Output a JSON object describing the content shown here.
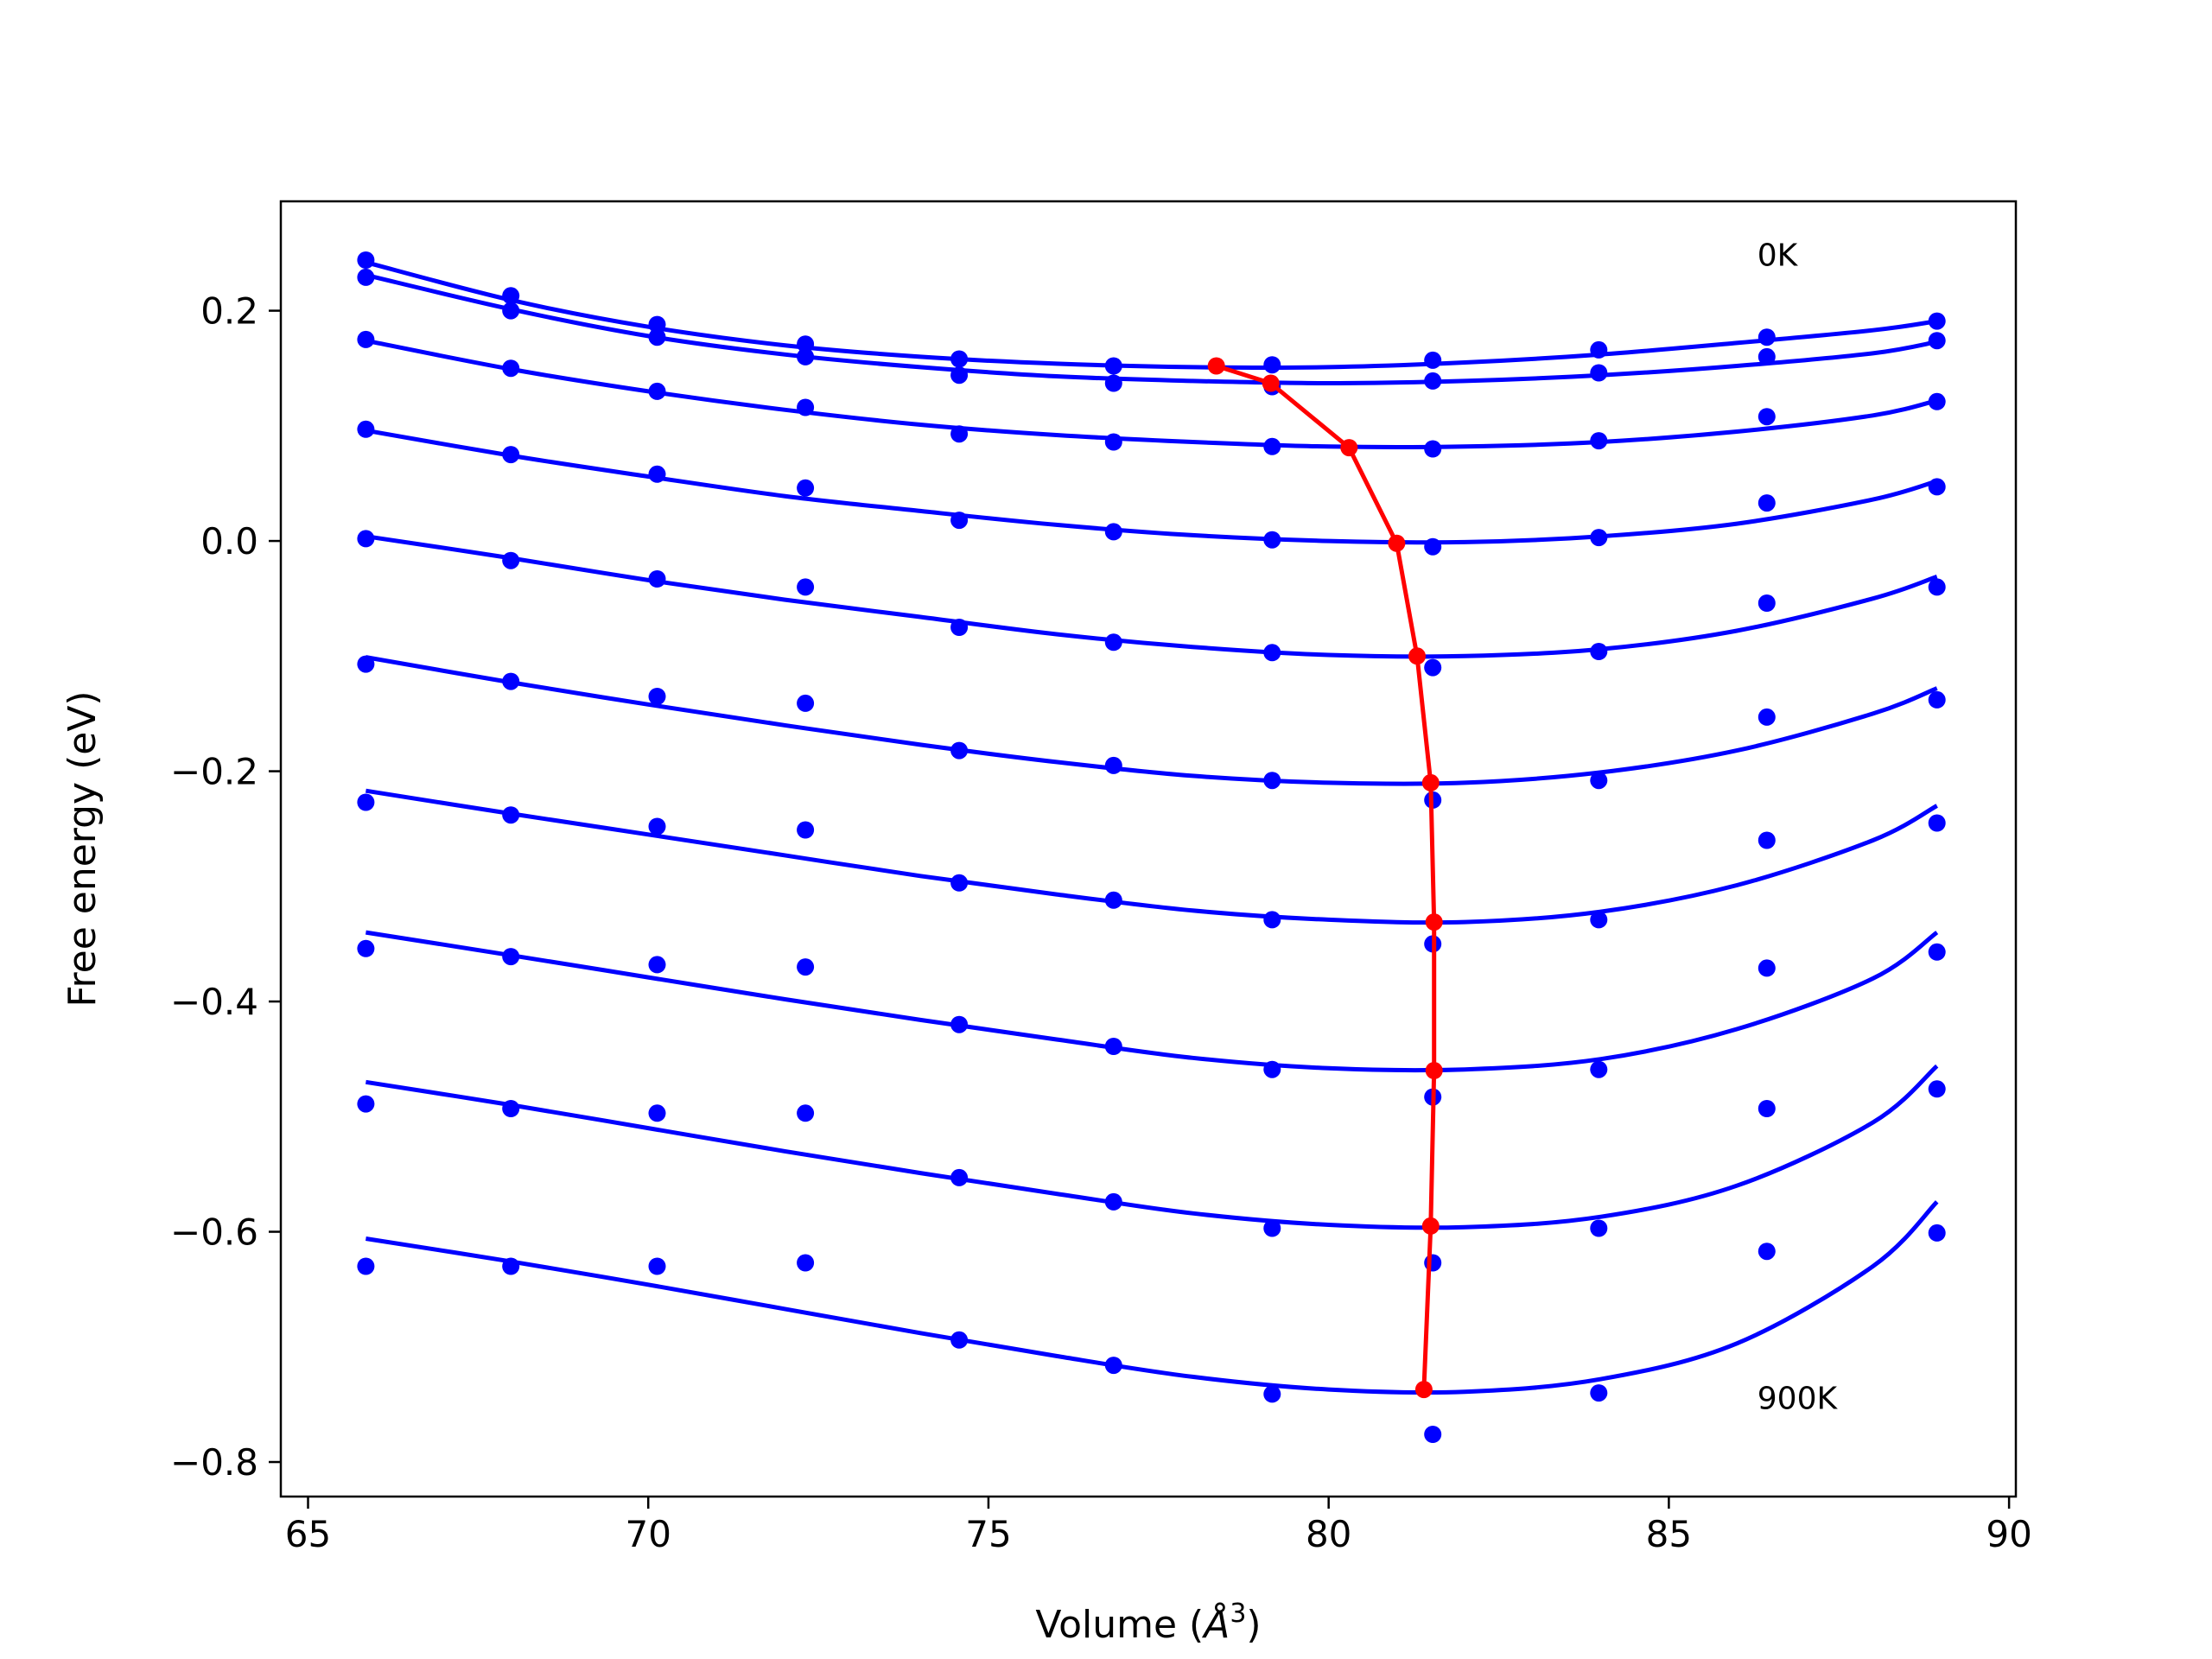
{
  "chart_data": {
    "type": "line",
    "title": "",
    "xlabel": "Volume (",
    "xlabel_symbol": "Å",
    "xlabel_exp": "3",
    "xlabel_close": ")",
    "ylabel": "Free energy (eV)",
    "xlim": [
      64.6,
      90.1
    ],
    "ylim": [
      -0.83,
      0.295
    ],
    "xticks": [
      65,
      70,
      75,
      80,
      85,
      90
    ],
    "xtick_labels": [
      "65",
      "70",
      "75",
      "80",
      "85",
      "90"
    ],
    "yticks": [
      0.2,
      0.0,
      -0.2,
      -0.4,
      -0.6,
      -0.8
    ],
    "ytick_labels": [
      "0.2",
      "0.0",
      "−0.2",
      "−0.4",
      "−0.6",
      "−0.8"
    ],
    "grid": false,
    "annotations": [
      {
        "text": "0K",
        "x": 86.3,
        "y": 0.248
      },
      {
        "text": "900K",
        "x": 86.3,
        "y": -0.745
      }
    ],
    "series_color": "#0000ff",
    "equilibrium_color": "#ff0000",
    "volumes": [
      65.85,
      67.98,
      70.13,
      72.31,
      74.57,
      76.84,
      79.17,
      81.53,
      83.97,
      86.44,
      88.94
    ],
    "series": [
      {
        "points": [
          0.244,
          0.213,
          0.188,
          0.171,
          0.158,
          0.152,
          0.153,
          0.157,
          0.166,
          0.177,
          0.191
        ],
        "fit": [
          [
            65.85,
            0.242
          ],
          [
            68.0,
            0.209
          ],
          [
            70.0,
            0.186
          ],
          [
            72.0,
            0.17
          ],
          [
            74.0,
            0.16
          ],
          [
            76.0,
            0.154
          ],
          [
            78.0,
            0.151
          ],
          [
            80.0,
            0.151
          ],
          [
            82.0,
            0.155
          ],
          [
            84.0,
            0.162
          ],
          [
            86.0,
            0.172
          ],
          [
            88.0,
            0.183
          ],
          [
            88.94,
            0.191
          ]
        ]
      },
      {
        "points": [
          0.229,
          0.2,
          0.177,
          0.16,
          0.144,
          0.137,
          0.134,
          0.139,
          0.146,
          0.16,
          0.174
        ],
        "fit": [
          [
            65.85,
            0.231
          ],
          [
            68.0,
            0.201
          ],
          [
            70.0,
            0.178
          ],
          [
            72.0,
            0.162
          ],
          [
            74.0,
            0.151
          ],
          [
            76.0,
            0.143
          ],
          [
            78.0,
            0.139
          ],
          [
            80.0,
            0.137
          ],
          [
            82.0,
            0.139
          ],
          [
            84.0,
            0.144
          ],
          [
            86.0,
            0.152
          ],
          [
            88.0,
            0.163
          ],
          [
            88.94,
            0.173
          ]
        ]
      },
      {
        "points": [
          0.175,
          0.15,
          0.13,
          0.116,
          0.093,
          0.086,
          0.082,
          0.08,
          0.087,
          0.108,
          0.121
        ],
        "fit": [
          [
            65.85,
            0.174
          ],
          [
            68.0,
            0.149
          ],
          [
            70.0,
            0.13
          ],
          [
            72.0,
            0.114
          ],
          [
            74.0,
            0.101
          ],
          [
            76.0,
            0.092
          ],
          [
            78.0,
            0.086
          ],
          [
            80.0,
            0.082
          ],
          [
            82.0,
            0.082
          ],
          [
            84.0,
            0.086
          ],
          [
            86.0,
            0.095
          ],
          [
            88.0,
            0.109
          ],
          [
            88.94,
            0.122
          ]
        ]
      },
      {
        "points": [
          0.097,
          0.075,
          0.058,
          0.046,
          0.018,
          0.008,
          0.001,
          -0.005,
          0.003,
          0.033,
          0.047
        ],
        "fit": [
          [
            65.85,
            0.096
          ],
          [
            68.0,
            0.074
          ],
          [
            70.0,
            0.056
          ],
          [
            72.0,
            0.039
          ],
          [
            74.0,
            0.026
          ],
          [
            76.0,
            0.014
          ],
          [
            78.0,
            0.005
          ],
          [
            80.0,
            0.0
          ],
          [
            82.0,
            -0.001
          ],
          [
            84.0,
            0.004
          ],
          [
            86.0,
            0.015
          ],
          [
            88.0,
            0.036
          ],
          [
            88.94,
            0.052
          ]
        ]
      },
      {
        "points": [
          0.002,
          -0.017,
          -0.033,
          -0.04,
          -0.075,
          -0.088,
          -0.097,
          -0.11,
          -0.096,
          -0.054,
          -0.04
        ],
        "fit": [
          [
            65.85,
            0.004
          ],
          [
            68.0,
            -0.015
          ],
          [
            70.0,
            -0.034
          ],
          [
            72.0,
            -0.051
          ],
          [
            74.0,
            -0.066
          ],
          [
            76.0,
            -0.081
          ],
          [
            78.0,
            -0.092
          ],
          [
            80.0,
            -0.099
          ],
          [
            82.0,
            -0.1
          ],
          [
            84.0,
            -0.094
          ],
          [
            86.0,
            -0.078
          ],
          [
            88.0,
            -0.05
          ],
          [
            88.94,
            -0.031
          ]
        ]
      },
      {
        "points": [
          -0.107,
          -0.122,
          -0.135,
          -0.141,
          -0.182,
          -0.195,
          -0.208,
          -0.225,
          -0.208,
          -0.153,
          -0.138
        ],
        "fit": [
          [
            65.85,
            -0.101
          ],
          [
            68.0,
            -0.123
          ],
          [
            70.0,
            -0.142
          ],
          [
            72.0,
            -0.16
          ],
          [
            74.0,
            -0.177
          ],
          [
            76.0,
            -0.192
          ],
          [
            78.0,
            -0.204
          ],
          [
            80.0,
            -0.21
          ],
          [
            82.0,
            -0.21
          ],
          [
            84.0,
            -0.201
          ],
          [
            86.0,
            -0.182
          ],
          [
            88.0,
            -0.15
          ],
          [
            88.94,
            -0.128
          ]
        ]
      },
      {
        "points": [
          -0.227,
          -0.238,
          -0.248,
          -0.251,
          -0.297,
          -0.312,
          -0.329,
          -0.35,
          -0.329,
          -0.26,
          -0.245
        ],
        "fit": [
          [
            65.85,
            -0.217
          ],
          [
            68.0,
            -0.237
          ],
          [
            70.0,
            -0.255
          ],
          [
            72.0,
            -0.273
          ],
          [
            74.0,
            -0.291
          ],
          [
            76.0,
            -0.307
          ],
          [
            78.0,
            -0.321
          ],
          [
            80.0,
            -0.329
          ],
          [
            82.0,
            -0.331
          ],
          [
            84.0,
            -0.322
          ],
          [
            86.0,
            -0.299
          ],
          [
            88.0,
            -0.26
          ],
          [
            88.94,
            -0.23
          ]
        ]
      },
      {
        "points": [
          -0.354,
          -0.361,
          -0.368,
          -0.37,
          -0.42,
          -0.439,
          -0.459,
          -0.483,
          -0.459,
          -0.371,
          -0.357
        ],
        "fit": [
          [
            65.85,
            -0.34
          ],
          [
            68.0,
            -0.36
          ],
          [
            70.0,
            -0.379
          ],
          [
            72.0,
            -0.398
          ],
          [
            74.0,
            -0.416
          ],
          [
            76.0,
            -0.433
          ],
          [
            78.0,
            -0.449
          ],
          [
            80.0,
            -0.458
          ],
          [
            82.0,
            -0.459
          ],
          [
            84.0,
            -0.45
          ],
          [
            86.0,
            -0.424
          ],
          [
            88.0,
            -0.38
          ],
          [
            88.94,
            -0.34
          ]
        ]
      },
      {
        "points": [
          -0.489,
          -0.493,
          -0.497,
          -0.497,
          -0.553,
          -0.574,
          -0.597,
          -0.627,
          -0.597,
          -0.493,
          -0.476
        ],
        "fit": [
          [
            65.85,
            -0.47
          ],
          [
            68.0,
            -0.49
          ],
          [
            70.0,
            -0.51
          ],
          [
            72.0,
            -0.53
          ],
          [
            74.0,
            -0.549
          ],
          [
            76.0,
            -0.567
          ],
          [
            78.0,
            -0.584
          ],
          [
            80.0,
            -0.594
          ],
          [
            82.0,
            -0.596
          ],
          [
            84.0,
            -0.587
          ],
          [
            86.0,
            -0.56
          ],
          [
            88.0,
            -0.505
          ],
          [
            88.94,
            -0.456
          ]
        ]
      },
      {
        "points": [
          -0.63,
          -0.63,
          -0.63,
          -0.627,
          -0.694,
          -0.716,
          -0.741,
          -0.776,
          -0.74,
          -0.617,
          -0.601
        ],
        "fit": [
          [
            65.85,
            -0.606
          ],
          [
            68.0,
            -0.626
          ],
          [
            70.0,
            -0.646
          ],
          [
            72.0,
            -0.667
          ],
          [
            74.0,
            -0.688
          ],
          [
            76.0,
            -0.708
          ],
          [
            78.0,
            -0.726
          ],
          [
            80.0,
            -0.737
          ],
          [
            82.0,
            -0.739
          ],
          [
            84.0,
            -0.728
          ],
          [
            86.0,
            -0.697
          ],
          [
            88.0,
            -0.63
          ],
          [
            88.94,
            -0.574
          ]
        ]
      }
    ],
    "equilibrium": {
      "x": [
        78.35,
        79.15,
        80.3,
        81.0,
        81.3,
        81.5,
        81.55,
        81.55,
        81.5,
        81.4
      ],
      "y": [
        0.152,
        0.137,
        0.081,
        -0.002,
        -0.1,
        -0.21,
        -0.331,
        -0.46,
        -0.595,
        -0.737
      ]
    }
  }
}
